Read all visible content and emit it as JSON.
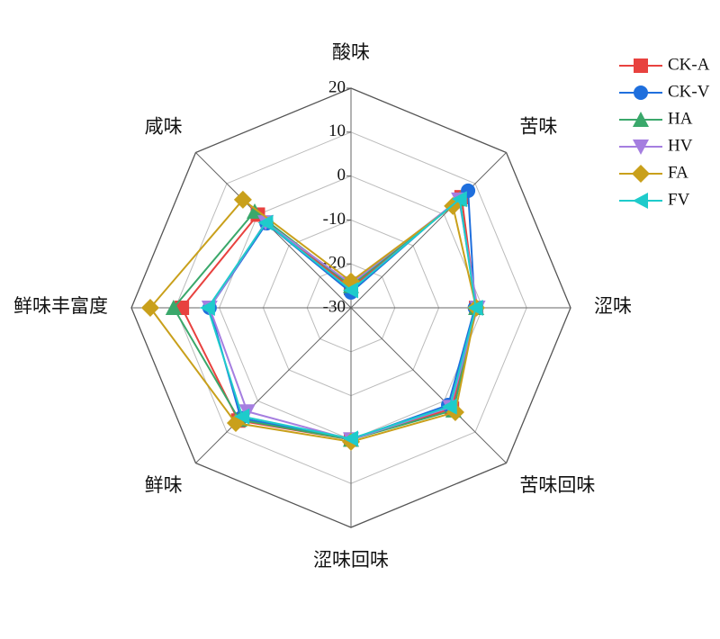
{
  "chart_data": {
    "type": "radar",
    "categories": [
      "酸味",
      "苦味",
      "涩味",
      "苦味回味",
      "涩味回味",
      "鲜味",
      "鲜味丰富度",
      "咸味"
    ],
    "rlim": [
      -30,
      20
    ],
    "rticks": [
      20,
      10,
      0,
      -10,
      -20,
      -30
    ],
    "grid": true,
    "legend": "top-right",
    "series": [
      {
        "name": "CK-A",
        "color": "#e8423f",
        "marker": "square",
        "values": [
          -25.5,
          5.6,
          -1.5,
          2.5,
          0,
          6.3,
          8.5,
          0
        ]
      },
      {
        "name": "CK-V",
        "color": "#1f6fdd",
        "marker": "circle",
        "values": [
          -26.5,
          7.7,
          -1.8,
          1.3,
          0,
          5.5,
          2.2,
          -2.8
        ]
      },
      {
        "name": "HA",
        "color": "#3aa86b",
        "marker": "triangle-up",
        "values": [
          -25,
          5,
          -1.5,
          3,
          0,
          6,
          10.4,
          1
        ]
      },
      {
        "name": "HV",
        "color": "#a57ee0",
        "marker": "triangle-down",
        "values": [
          -24.5,
          4.8,
          -1.2,
          2,
          0,
          3.4,
          2.2,
          -2.5
        ]
      },
      {
        "name": "FA",
        "color": "#c9a01b",
        "marker": "diamond",
        "values": [
          -24,
          2.8,
          -1.5,
          3.6,
          0.5,
          7.1,
          15.7,
          4.8
        ]
      },
      {
        "name": "FV",
        "color": "#1ecbcb",
        "marker": "triangle-left",
        "values": [
          -26,
          5,
          -1.6,
          1.8,
          -0.2,
          5,
          2.6,
          -2.6
        ]
      }
    ]
  }
}
